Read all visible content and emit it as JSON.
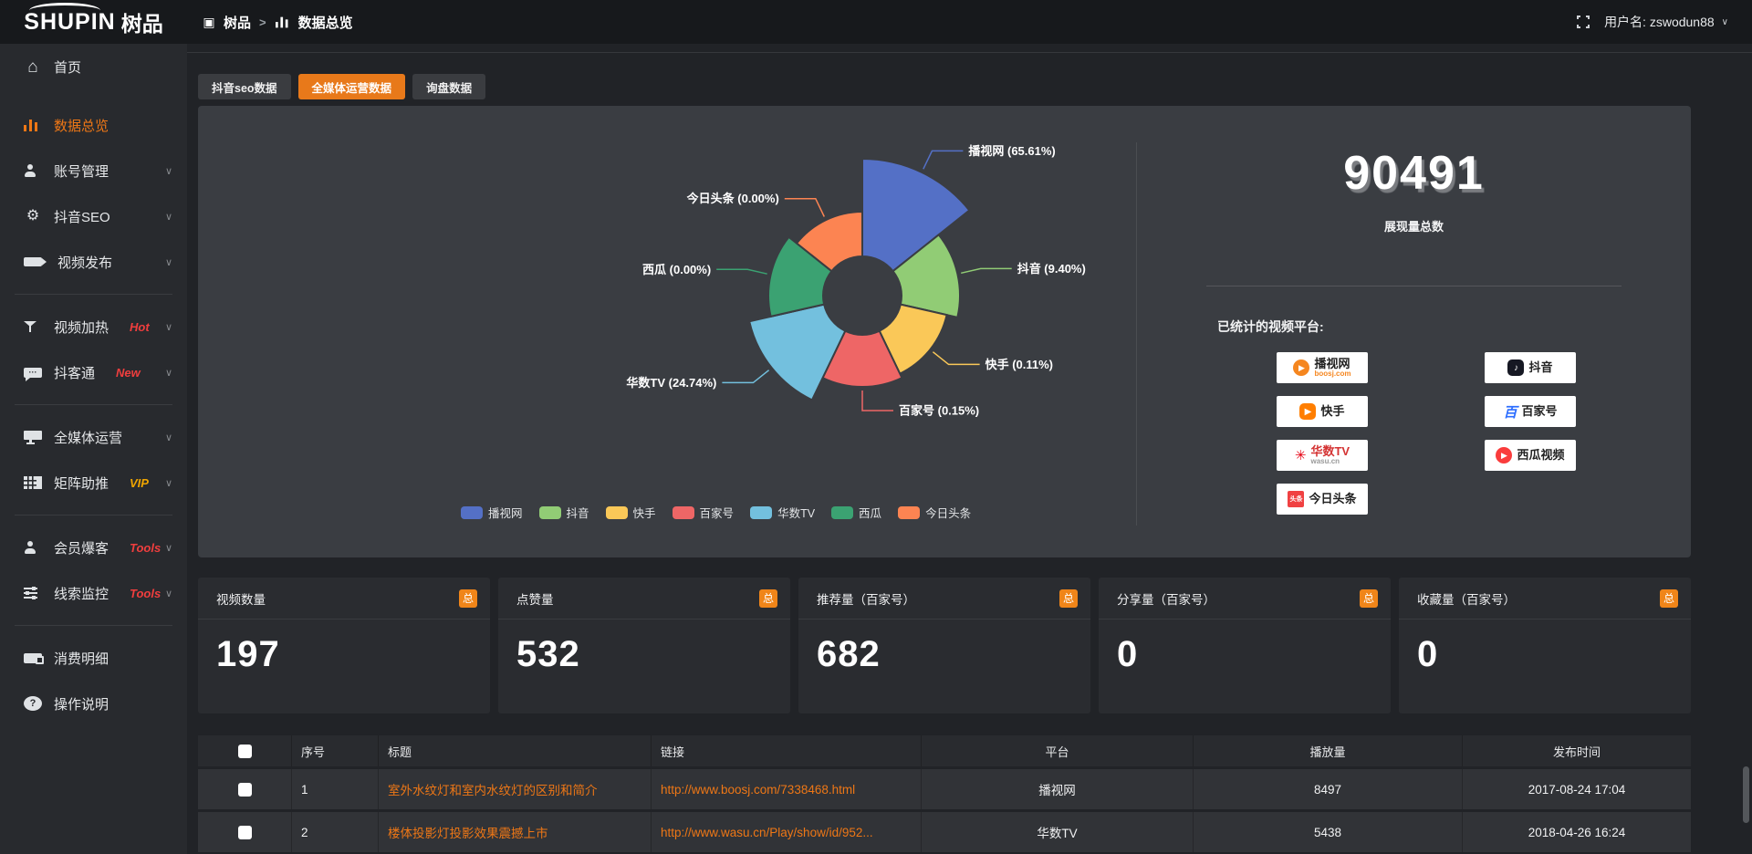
{
  "topbar": {
    "logo_en": "SHUPIN",
    "logo_cn": "树品",
    "breadcrumb": [
      {
        "label": "树品",
        "icon": "app-square-icon"
      },
      {
        "label": "数据总览",
        "icon": "bar-chart-icon"
      }
    ],
    "breadcrumb_separator": ">",
    "username": "用户名: zswodun88"
  },
  "sidebar": {
    "items": [
      {
        "key": "home",
        "label": "首页",
        "icon": "home-icon"
      },
      {
        "key": "data-overview",
        "label": "数据总览",
        "icon": "bar-chart-icon",
        "active": true
      },
      {
        "key": "account-manage",
        "label": "账号管理",
        "icon": "person-icon",
        "chevron": true
      },
      {
        "key": "douyin-seo",
        "label": "抖音SEO",
        "icon": "gear-icon",
        "chevron": true
      },
      {
        "key": "video-publish",
        "label": "视频发布",
        "icon": "video-icon",
        "chevron": true,
        "divider_after": true
      },
      {
        "key": "video-heat",
        "label": "视频加热",
        "icon": "funnel-icon",
        "tag": "Hot",
        "tag_color": "#f03e3e",
        "chevron": true
      },
      {
        "key": "douketong",
        "label": "抖客通",
        "icon": "chat-icon",
        "tag": "New",
        "tag_color": "#f03e3e",
        "chevron": true,
        "divider_after": true
      },
      {
        "key": "media-operation",
        "label": "全媒体运营",
        "icon": "monitor-icon",
        "chevron": true
      },
      {
        "key": "matrix-boost",
        "label": "矩阵助推",
        "icon": "grid-icon",
        "tag": "VIP",
        "tag_color": "#f0a500",
        "chevron": true,
        "divider_after": true
      },
      {
        "key": "member-burst",
        "label": "会员爆客",
        "icon": "person-icon",
        "tag": "Tools",
        "tag_color": "#f03e3e",
        "chevron": true
      },
      {
        "key": "clue-monitor",
        "label": "线索监控",
        "icon": "sliders-icon",
        "tag": "Tools",
        "tag_color": "#f03e3e",
        "chevron": true,
        "divider_after": true
      },
      {
        "key": "consume-detail",
        "label": "消费明细",
        "icon": "wallet-icon"
      },
      {
        "key": "instructions",
        "label": "操作说明",
        "icon": "question-icon"
      }
    ]
  },
  "tabs": [
    {
      "label": "抖音seo数据"
    },
    {
      "label": "全媒体运营数据",
      "active": true
    },
    {
      "label": "询盘数据"
    }
  ],
  "chart_data": {
    "type": "pie",
    "variant": "nightingale-rose",
    "unit": "percent",
    "legend_position": "bottom",
    "inner_radius_px": 43,
    "series": [
      {
        "name": "播视网",
        "value": 65.61,
        "color": "#5470c6",
        "radius_px": 150
      },
      {
        "name": "抖音",
        "value": 9.4,
        "color": "#91cc75",
        "radius_px": 107
      },
      {
        "name": "快手",
        "value": 0.11,
        "color": "#fac858",
        "radius_px": 95
      },
      {
        "name": "百家号",
        "value": 0.15,
        "color": "#ee6666",
        "radius_px": 100
      },
      {
        "name": "华数TV",
        "value": 24.74,
        "color": "#73c0de",
        "radius_px": 127
      },
      {
        "name": "西瓜",
        "value": 0.0,
        "color": "#3ba272",
        "radius_px": 103
      },
      {
        "name": "今日头条",
        "value": 0.0,
        "color": "#fc8452",
        "radius_px": 92
      }
    ]
  },
  "overview": {
    "total": "90491",
    "total_label": "展现量总数",
    "platforms_label": "已统计的视频平台:",
    "platform_columns": [
      [
        {
          "name": "播视网",
          "sub": "boosj.com",
          "icon": "boosj-logo",
          "shape": "circle",
          "glyph": "▶",
          "icon_bg": "#f5861f",
          "name_color": "#222222",
          "sub_color": "#f5861f"
        },
        {
          "name": "快手",
          "icon": "kuaishou-logo",
          "shape": "round",
          "glyph": "▶",
          "icon_bg": "#ff7e00",
          "name_color": "#222222"
        },
        {
          "name": "华数TV",
          "sub": "wasu.cn",
          "icon": "wasu-logo",
          "shape": "text",
          "glyph": "✳",
          "icon_color": "#e60012",
          "name_color": "#d43333",
          "sub_color": "#999999"
        },
        {
          "name": "今日头条",
          "icon": "toutiao-logo",
          "shape": "square",
          "glyph": "头条",
          "icon_bg": "#f04142",
          "name_color": "#222222"
        }
      ],
      [
        {
          "name": "抖音",
          "icon": "douyin-logo",
          "shape": "round",
          "glyph": "♪",
          "icon_bg": "#161823",
          "name_color": "#222222"
        },
        {
          "name": "百家号",
          "icon": "baijiahao-logo",
          "shape": "text",
          "glyph": "百",
          "icon_color": "#2d6eff",
          "name_color": "#222222"
        },
        {
          "name": "西瓜视频",
          "icon": "xigua-logo",
          "shape": "circle",
          "glyph": "▶",
          "icon_bg": "#fa3c3c",
          "name_color": "#222222"
        }
      ]
    ]
  },
  "stat_cards": [
    {
      "title": "视频数量",
      "badge": "总",
      "value": "197"
    },
    {
      "title": "点赞量",
      "badge": "总",
      "value": "532"
    },
    {
      "title": "推荐量（百家号）",
      "badge": "总",
      "value": "682"
    },
    {
      "title": "分享量（百家号）",
      "badge": "总",
      "value": "0"
    },
    {
      "title": "收藏量（百家号）",
      "badge": "总",
      "value": "0"
    }
  ],
  "table": {
    "headers": [
      "序号",
      "标题",
      "链接",
      "平台",
      "播放量",
      "发布时间"
    ],
    "rows": [
      {
        "index": "1",
        "title": "室外水纹灯和室内水纹灯的区别和简介",
        "link": "http://www.boosj.com/7338468.html",
        "platform": "播视网",
        "plays": "8497",
        "time": "2017-08-24 17:04"
      },
      {
        "index": "2",
        "title": "楼体投影灯投影效果震撼上市",
        "link": "http://www.wasu.cn/Play/show/id/952...",
        "platform": "华数TV",
        "plays": "5438",
        "time": "2018-04-26 16:24"
      }
    ]
  },
  "colors": {
    "accent": "#ee7716",
    "tab_active_bg": "#e8791a",
    "total_badge_bg": "#f08519",
    "link": "#ee7716"
  }
}
